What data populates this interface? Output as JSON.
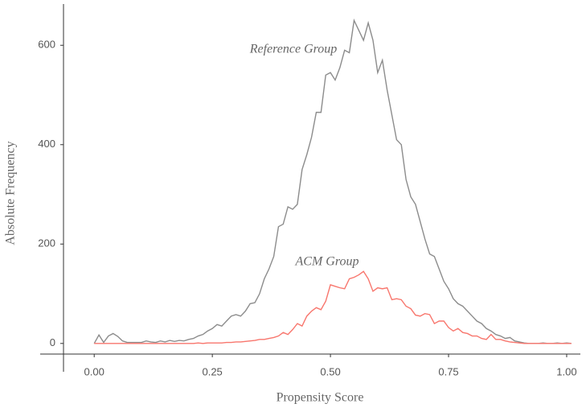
{
  "chart_data": {
    "type": "line",
    "x_label": "Propensity Score",
    "y_label": "Absolute Frequency",
    "annotations": [
      "Reference Group",
      "ACM Group"
    ],
    "x": [
      0,
      0.01,
      0.02,
      0.03,
      0.04,
      0.05,
      0.06,
      0.07,
      0.08,
      0.09,
      0.1,
      0.11,
      0.12,
      0.13,
      0.14,
      0.15,
      0.16,
      0.17,
      0.18,
      0.19,
      0.2,
      0.21,
      0.22,
      0.23,
      0.24,
      0.25,
      0.26,
      0.27,
      0.28,
      0.29,
      0.3,
      0.31,
      0.32,
      0.33,
      0.34,
      0.35,
      0.36,
      0.37,
      0.38,
      0.39,
      0.4,
      0.41,
      0.42,
      0.43,
      0.44,
      0.45,
      0.46,
      0.47,
      0.48,
      0.49,
      0.5,
      0.51,
      0.52,
      0.53,
      0.54,
      0.55,
      0.56,
      0.57,
      0.58,
      0.59,
      0.6,
      0.61,
      0.62,
      0.63,
      0.64,
      0.65,
      0.66,
      0.67,
      0.68,
      0.69,
      0.7,
      0.71,
      0.72,
      0.73,
      0.74,
      0.75,
      0.76,
      0.77,
      0.78,
      0.79,
      0.8,
      0.81,
      0.82,
      0.83,
      0.84,
      0.85,
      0.86,
      0.87,
      0.88,
      0.89,
      0.9,
      0.91,
      0.92,
      0.93,
      0.94,
      0.95,
      0.96,
      0.97,
      0.98,
      0.99,
      1,
      1.01
    ],
    "series": [
      {
        "name": "Reference Group",
        "color": "#8c8c8c",
        "values": [
          0,
          17,
          2,
          15,
          20,
          14,
          5,
          2,
          2,
          2,
          2,
          5,
          3,
          2,
          5,
          3,
          6,
          4,
          6,
          5,
          8,
          10,
          15,
          18,
          25,
          30,
          38,
          35,
          45,
          55,
          58,
          55,
          65,
          80,
          82,
          100,
          130,
          150,
          175,
          235,
          240,
          275,
          270,
          280,
          350,
          380,
          415,
          465,
          465,
          540,
          545,
          530,
          555,
          590,
          585,
          650,
          630,
          610,
          645,
          610,
          545,
          570,
          510,
          460,
          410,
          400,
          330,
          295,
          280,
          245,
          210,
          180,
          175,
          150,
          125,
          110,
          90,
          80,
          75,
          65,
          55,
          45,
          40,
          30,
          25,
          18,
          15,
          10,
          12,
          5,
          3,
          1,
          0,
          0,
          0,
          1,
          0,
          0,
          1,
          0,
          1,
          0
        ]
      },
      {
        "name": "ACM Group",
        "color": "#f8766d",
        "values": [
          0,
          0,
          0,
          0,
          0,
          0,
          0,
          0,
          0,
          0,
          0,
          0,
          0,
          0,
          0,
          0,
          0,
          0,
          0,
          0,
          0,
          0,
          1,
          0,
          1,
          1,
          1,
          1,
          2,
          2,
          3,
          3,
          4,
          5,
          6,
          8,
          8,
          10,
          12,
          15,
          22,
          18,
          28,
          40,
          35,
          55,
          65,
          72,
          68,
          85,
          118,
          115,
          112,
          110,
          130,
          133,
          138,
          145,
          130,
          105,
          112,
          110,
          112,
          88,
          90,
          88,
          75,
          70,
          57,
          55,
          60,
          58,
          40,
          45,
          45,
          32,
          25,
          30,
          22,
          20,
          15,
          15,
          10,
          8,
          18,
          8,
          8,
          5,
          3,
          2,
          1,
          0,
          0,
          0,
          0,
          0,
          0,
          0,
          0,
          0,
          0,
          0
        ]
      }
    ],
    "xlim": [
      -0.065,
      1.029
    ],
    "ylim": [
      -57,
      683
    ],
    "xticks": [
      {
        "value": 0,
        "label": "0.00"
      },
      {
        "value": 0.25,
        "label": "0.25"
      },
      {
        "value": 0.5,
        "label": "0.50"
      },
      {
        "value": 0.75,
        "label": "0.75"
      },
      {
        "value": 1,
        "label": "1.00"
      }
    ],
    "yticks": [
      0,
      200,
      400,
      600
    ],
    "grid": false
  }
}
